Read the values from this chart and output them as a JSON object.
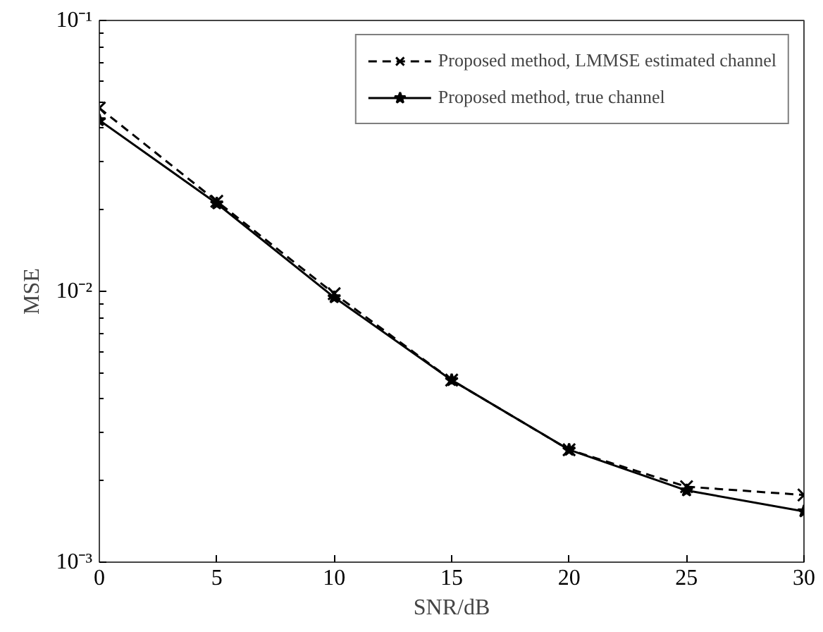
{
  "chart_data": {
    "type": "line",
    "xlabel": "SNR/dB",
    "ylabel": "MSE",
    "log": "y",
    "grid": false,
    "legend": "top right",
    "x": [
      0,
      5,
      10,
      15,
      20,
      25,
      30
    ],
    "xlim": [
      0,
      30
    ],
    "xticks": [
      0,
      5,
      10,
      15,
      20,
      25,
      30
    ],
    "ylim": [
      0.001,
      0.1
    ],
    "yticks": [
      {
        "value": 0.001,
        "label": "10⁻³"
      },
      {
        "value": 0.01,
        "label": "10⁻²"
      },
      {
        "value": 0.1,
        "label": "10⁻¹"
      }
    ],
    "series": [
      {
        "name": "Proposed method, LMMSE estimated channel",
        "color": "#000000",
        "line_style": "dashed",
        "marker": "cross",
        "values": [
          0.0475,
          0.0215,
          0.0098,
          0.0047,
          0.0026,
          0.0019,
          0.00177
        ]
      },
      {
        "name": "Proposed method, true channel",
        "color": "#000000",
        "line_style": "solid",
        "marker": "star",
        "values": [
          0.0428,
          0.0211,
          0.0095,
          0.0047,
          0.0026,
          0.00184,
          0.00154
        ]
      }
    ]
  }
}
